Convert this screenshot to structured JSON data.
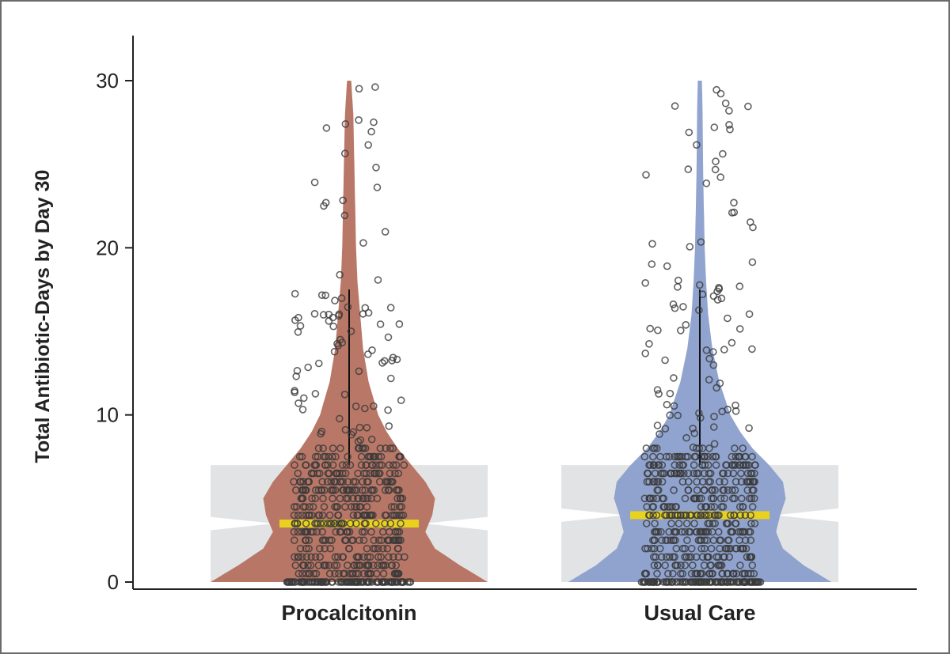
{
  "chart_data": {
    "type": "violin",
    "ylabel": "Total Antibiotic-Days by Day 30",
    "ylim": [
      0,
      30
    ],
    "yticks": [
      0,
      10,
      20,
      30
    ],
    "categories": [
      "Procalcitonin",
      "Usual Care"
    ],
    "series": [
      {
        "name": "Procalcitonin",
        "color": "#b5705f",
        "median": 3.5,
        "q1": 0,
        "q3": 7,
        "notch": [
          3.1,
          3.9
        ],
        "whisker_high": 17.5,
        "max": 30,
        "density_profile": [
          [
            0,
            1.0
          ],
          [
            1,
            0.8
          ],
          [
            2,
            0.62
          ],
          [
            3,
            0.55
          ],
          [
            4,
            0.6
          ],
          [
            5,
            0.62
          ],
          [
            6,
            0.55
          ],
          [
            7,
            0.45
          ],
          [
            8,
            0.35
          ],
          [
            9,
            0.27
          ],
          [
            10,
            0.21
          ],
          [
            12,
            0.14
          ],
          [
            14,
            0.1
          ],
          [
            16,
            0.08
          ],
          [
            18,
            0.06
          ],
          [
            20,
            0.05
          ],
          [
            22,
            0.045
          ],
          [
            24,
            0.04
          ],
          [
            26,
            0.035
          ],
          [
            28,
            0.03
          ],
          [
            30,
            0.015
          ]
        ]
      },
      {
        "name": "Usual Care",
        "color": "#8a9fcc",
        "median": 4,
        "q1": 0,
        "q3": 7,
        "notch": [
          3.6,
          4.4
        ],
        "whisker_high": 17.5,
        "max": 30,
        "density_profile": [
          [
            0,
            0.95
          ],
          [
            1,
            0.75
          ],
          [
            2,
            0.6
          ],
          [
            3,
            0.55
          ],
          [
            4,
            0.58
          ],
          [
            5,
            0.62
          ],
          [
            6,
            0.6
          ],
          [
            7,
            0.5
          ],
          [
            8,
            0.38
          ],
          [
            9,
            0.29
          ],
          [
            10,
            0.22
          ],
          [
            12,
            0.14
          ],
          [
            14,
            0.09
          ],
          [
            16,
            0.06
          ],
          [
            18,
            0.045
          ],
          [
            20,
            0.035
          ],
          [
            22,
            0.03
          ],
          [
            24,
            0.025
          ],
          [
            26,
            0.022
          ],
          [
            28,
            0.02
          ],
          [
            30,
            0.015
          ]
        ]
      }
    ],
    "points_note": "individual patient values shown as jittered open circles",
    "median_color": "#e8d21e",
    "box_color": "#e2e3e5",
    "grid": false
  }
}
